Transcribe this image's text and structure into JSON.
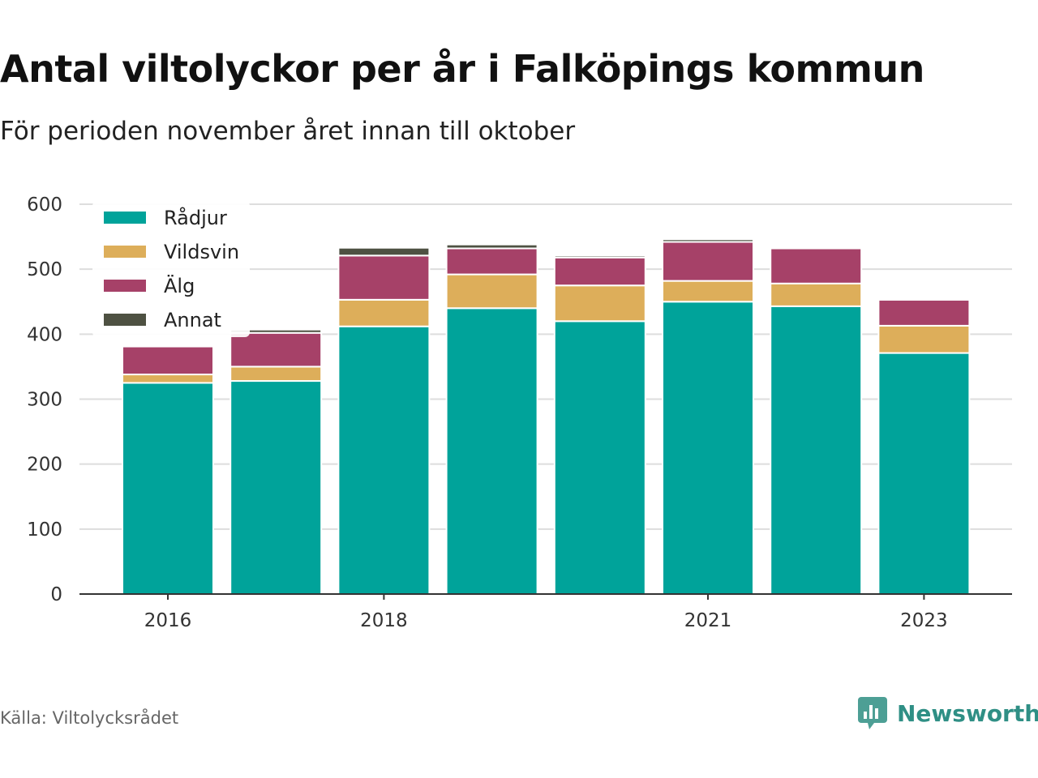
{
  "title": "Antal viltolyckor per år i Falköpings kommun",
  "subtitle": "För perioden november året innan till oktober",
  "source": "Källa: Viltolycksrådet",
  "brand": {
    "name": "Newsworthy",
    "icon": "newsworthy-logo-icon",
    "color": "#2f8f85"
  },
  "chart_data": {
    "type": "bar",
    "stacked": true,
    "categories": [
      "2016",
      "2017",
      "2018",
      "2019",
      "2020",
      "2021",
      "2022",
      "2023"
    ],
    "x_tick_labels": [
      "2016",
      "",
      "2018",
      "",
      "",
      "2021",
      "",
      "2023"
    ],
    "series": [
      {
        "name": "Rådjur",
        "color": "#00a39a",
        "values": [
          325,
          328,
          412,
          440,
          420,
          450,
          443,
          371
        ]
      },
      {
        "name": "Vildsvin",
        "color": "#ddae5a",
        "values": [
          13,
          22,
          41,
          52,
          55,
          32,
          35,
          42
        ]
      },
      {
        "name": "Älg",
        "color": "#a64168",
        "values": [
          43,
          52,
          68,
          40,
          43,
          60,
          54,
          40
        ]
      },
      {
        "name": "Annat",
        "color": "#4e5142",
        "values": [
          0,
          5,
          12,
          6,
          3,
          4,
          0,
          2
        ]
      }
    ],
    "ylim": [
      0,
      600
    ],
    "yticks": [
      0,
      100,
      200,
      300,
      400,
      500,
      600
    ],
    "xlabel": "",
    "ylabel": "",
    "grid": true,
    "legend_position": "top-left"
  }
}
